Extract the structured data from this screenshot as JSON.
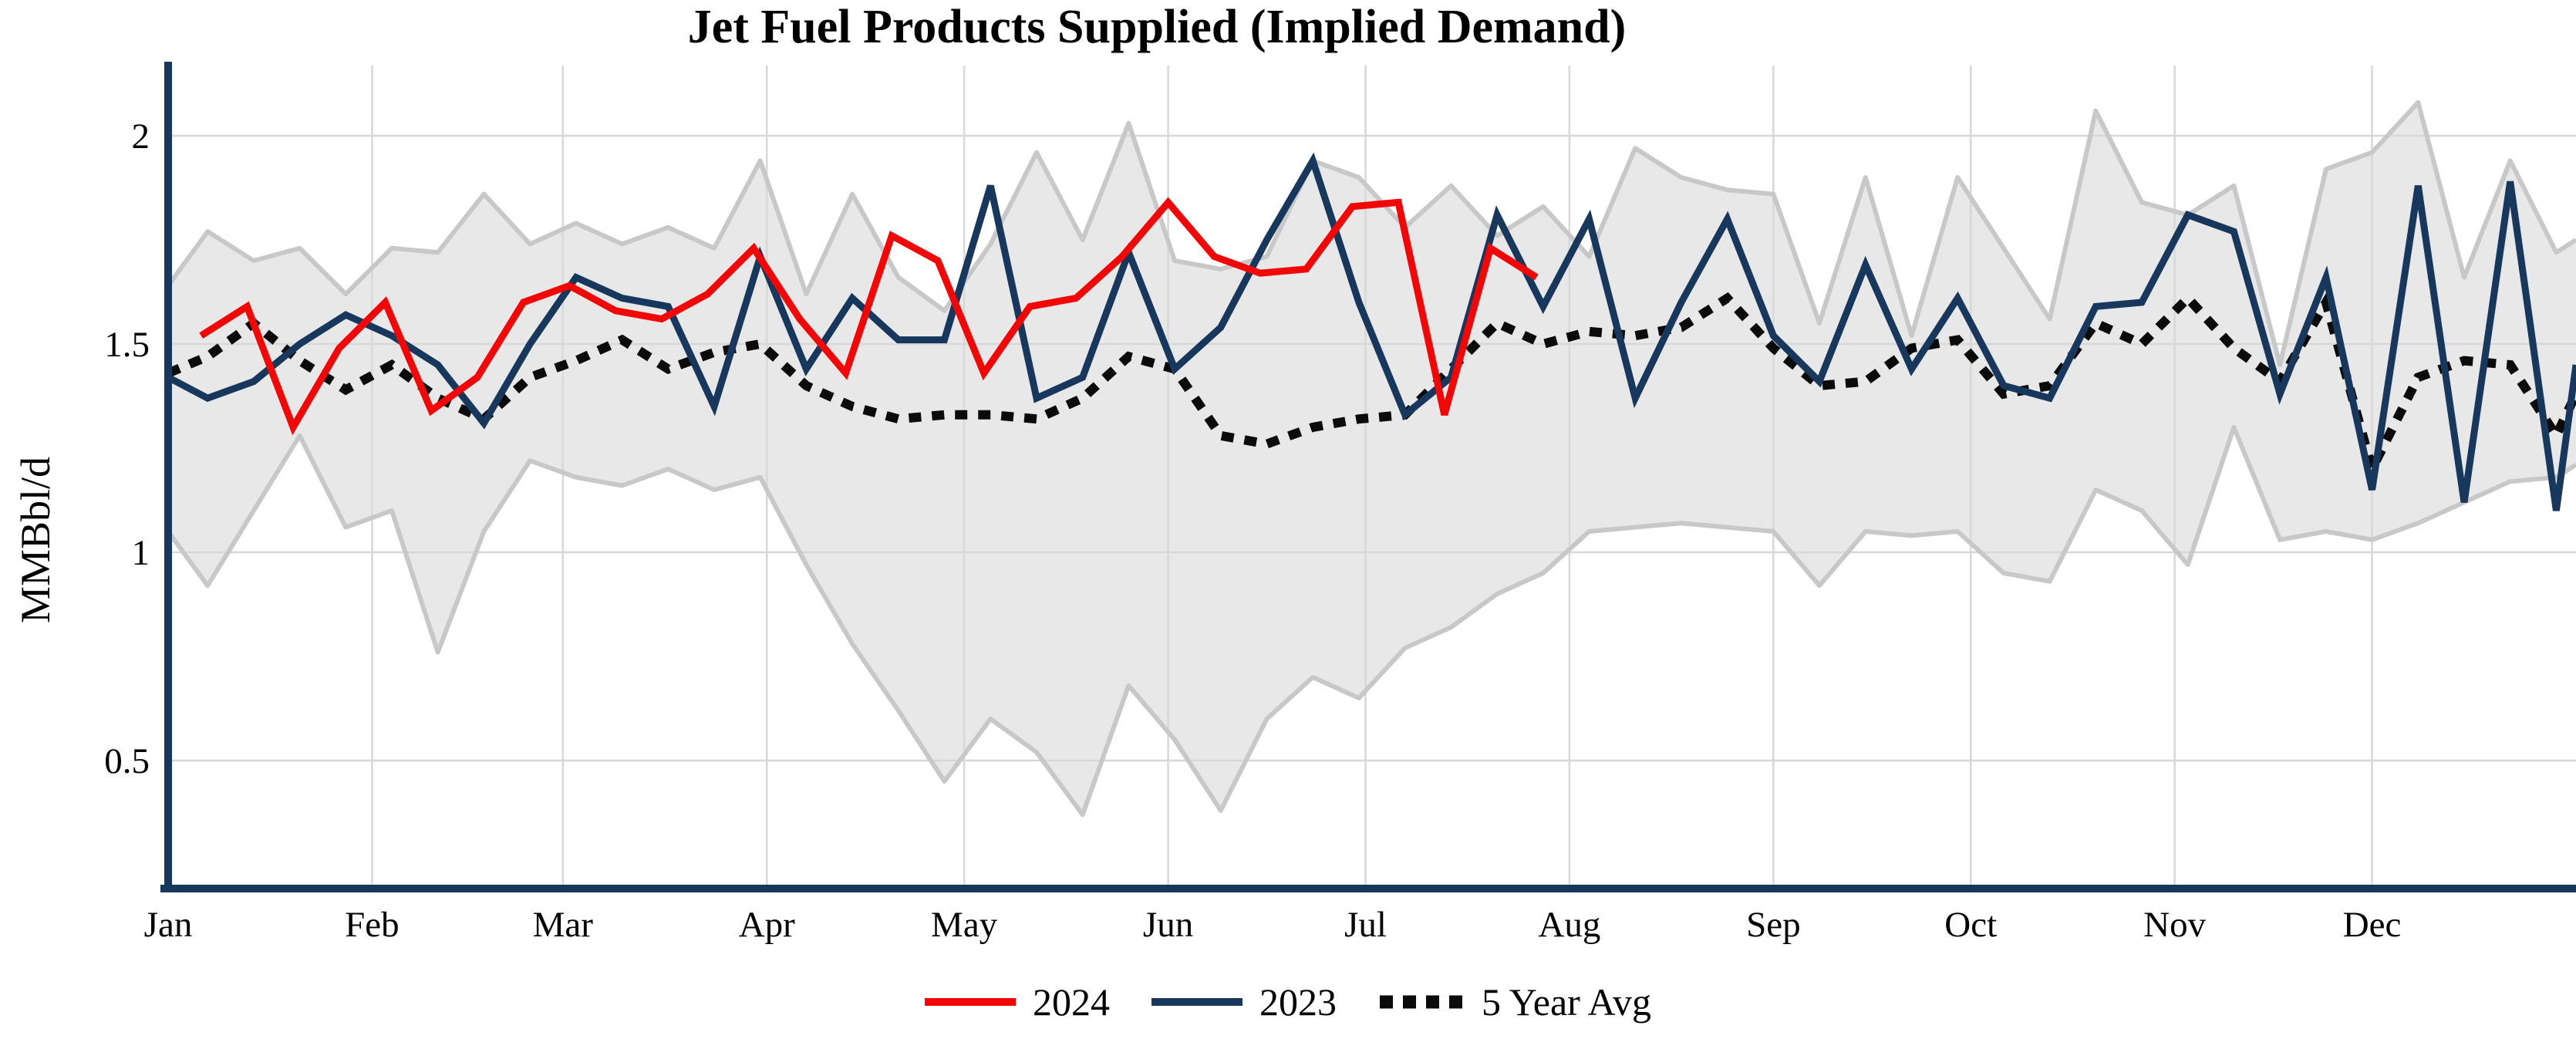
{
  "chart_data": {
    "type": "line",
    "title": "Jet Fuel Products Supplied (Implied Demand)",
    "ylabel": "MMBbl/d",
    "xlabel": "",
    "ylim": [
      0.19,
      2.17
    ],
    "yticks": [
      0.5,
      1,
      1.5,
      2
    ],
    "grid": true,
    "legend_position": "bottom",
    "x_unit": "day-of-year (weekly points)",
    "months": [
      {
        "label": "Jan",
        "day": 0
      },
      {
        "label": "Feb",
        "day": 31
      },
      {
        "label": "Mar",
        "day": 60
      },
      {
        "label": "Apr",
        "day": 91
      },
      {
        "label": "May",
        "day": 121
      },
      {
        "label": "Jun",
        "day": 152
      },
      {
        "label": "Jul",
        "day": 182
      },
      {
        "label": "Aug",
        "day": 213
      },
      {
        "label": "Sep",
        "day": 244
      },
      {
        "label": "Oct",
        "day": 274
      },
      {
        "label": "Nov",
        "day": 305
      },
      {
        "label": "Dec",
        "day": 335
      }
    ],
    "band": {
      "name": "5-year range",
      "fill": "#E8E8E8",
      "edge": "#C8C8C8",
      "points_upper": [
        [
          0,
          1.64
        ],
        [
          6,
          1.77
        ],
        [
          13,
          1.7
        ],
        [
          20,
          1.73
        ],
        [
          27,
          1.62
        ],
        [
          34,
          1.73
        ],
        [
          41,
          1.72
        ],
        [
          48,
          1.86
        ],
        [
          55,
          1.74
        ],
        [
          62,
          1.79
        ],
        [
          69,
          1.74
        ],
        [
          76,
          1.78
        ],
        [
          83,
          1.73
        ],
        [
          90,
          1.94
        ],
        [
          97,
          1.62
        ],
        [
          104,
          1.86
        ],
        [
          111,
          1.66
        ],
        [
          118,
          1.58
        ],
        [
          125,
          1.74
        ],
        [
          132,
          1.96
        ],
        [
          139,
          1.75
        ],
        [
          146,
          2.03
        ],
        [
          153,
          1.7
        ],
        [
          160,
          1.68
        ],
        [
          167,
          1.71
        ],
        [
          174,
          1.94
        ],
        [
          181,
          1.9
        ],
        [
          188,
          1.78
        ],
        [
          195,
          1.88
        ],
        [
          202,
          1.76
        ],
        [
          209,
          1.83
        ],
        [
          216,
          1.71
        ],
        [
          223,
          1.97
        ],
        [
          230,
          1.9
        ],
        [
          237,
          1.87
        ],
        [
          244,
          1.86
        ],
        [
          251,
          1.55
        ],
        [
          258,
          1.9
        ],
        [
          265,
          1.52
        ],
        [
          272,
          1.9
        ],
        [
          279,
          1.73
        ],
        [
          286,
          1.56
        ],
        [
          293,
          2.06
        ],
        [
          300,
          1.84
        ],
        [
          307,
          1.81
        ],
        [
          314,
          1.88
        ],
        [
          321,
          1.45
        ],
        [
          328,
          1.92
        ],
        [
          335,
          1.96
        ],
        [
          342,
          2.08
        ],
        [
          349,
          1.66
        ],
        [
          356,
          1.94
        ],
        [
          363,
          1.72
        ],
        [
          366,
          1.75
        ]
      ],
      "points_lower": [
        [
          0,
          1.05
        ],
        [
          6,
          0.92
        ],
        [
          13,
          1.1
        ],
        [
          20,
          1.28
        ],
        [
          27,
          1.06
        ],
        [
          34,
          1.1
        ],
        [
          41,
          0.76
        ],
        [
          48,
          1.05
        ],
        [
          55,
          1.22
        ],
        [
          62,
          1.18
        ],
        [
          69,
          1.16
        ],
        [
          76,
          1.2
        ],
        [
          83,
          1.15
        ],
        [
          90,
          1.18
        ],
        [
          97,
          0.97
        ],
        [
          104,
          0.78
        ],
        [
          111,
          0.62
        ],
        [
          118,
          0.45
        ],
        [
          125,
          0.6
        ],
        [
          132,
          0.52
        ],
        [
          139,
          0.37
        ],
        [
          146,
          0.68
        ],
        [
          153,
          0.55
        ],
        [
          160,
          0.38
        ],
        [
          167,
          0.6
        ],
        [
          174,
          0.7
        ],
        [
          181,
          0.65
        ],
        [
          188,
          0.77
        ],
        [
          195,
          0.82
        ],
        [
          202,
          0.9
        ],
        [
          209,
          0.95
        ],
        [
          216,
          1.05
        ],
        [
          223,
          1.06
        ],
        [
          230,
          1.07
        ],
        [
          237,
          1.06
        ],
        [
          244,
          1.05
        ],
        [
          251,
          0.92
        ],
        [
          258,
          1.05
        ],
        [
          265,
          1.04
        ],
        [
          272,
          1.05
        ],
        [
          279,
          0.95
        ],
        [
          286,
          0.93
        ],
        [
          293,
          1.15
        ],
        [
          300,
          1.1
        ],
        [
          307,
          0.97
        ],
        [
          314,
          1.3
        ],
        [
          321,
          1.03
        ],
        [
          328,
          1.05
        ],
        [
          335,
          1.03
        ],
        [
          342,
          1.07
        ],
        [
          349,
          1.12
        ],
        [
          356,
          1.17
        ],
        [
          363,
          1.18
        ],
        [
          366,
          1.21
        ]
      ]
    },
    "series": [
      {
        "name": "2024",
        "color": "#F20707",
        "style": "solid",
        "points": [
          [
            5,
            1.52
          ],
          [
            12,
            1.59
          ],
          [
            19,
            1.3
          ],
          [
            26,
            1.49
          ],
          [
            33,
            1.6
          ],
          [
            40,
            1.34
          ],
          [
            47,
            1.42
          ],
          [
            54,
            1.6
          ],
          [
            61,
            1.64
          ],
          [
            68,
            1.58
          ],
          [
            75,
            1.56
          ],
          [
            82,
            1.62
          ],
          [
            89,
            1.73
          ],
          [
            96,
            1.56
          ],
          [
            103,
            1.43
          ],
          [
            110,
            1.76
          ],
          [
            117,
            1.7
          ],
          [
            124,
            1.43
          ],
          [
            131,
            1.59
          ],
          [
            138,
            1.61
          ],
          [
            145,
            1.71
          ],
          [
            152,
            1.84
          ],
          [
            159,
            1.71
          ],
          [
            166,
            1.67
          ],
          [
            173,
            1.68
          ],
          [
            180,
            1.83
          ],
          [
            187,
            1.84
          ],
          [
            194,
            1.33
          ],
          [
            201,
            1.73
          ],
          [
            208,
            1.66
          ]
        ]
      },
      {
        "name": "2023",
        "color": "#17375D",
        "style": "solid",
        "points": [
          [
            0,
            1.42
          ],
          [
            6,
            1.37
          ],
          [
            13,
            1.41
          ],
          [
            20,
            1.5
          ],
          [
            27,
            1.57
          ],
          [
            34,
            1.52
          ],
          [
            41,
            1.45
          ],
          [
            48,
            1.31
          ],
          [
            55,
            1.5
          ],
          [
            62,
            1.66
          ],
          [
            69,
            1.61
          ],
          [
            76,
            1.59
          ],
          [
            83,
            1.35
          ],
          [
            90,
            1.71
          ],
          [
            97,
            1.44
          ],
          [
            104,
            1.61
          ],
          [
            111,
            1.51
          ],
          [
            118,
            1.51
          ],
          [
            125,
            1.88
          ],
          [
            132,
            1.37
          ],
          [
            139,
            1.42
          ],
          [
            146,
            1.72
          ],
          [
            153,
            1.44
          ],
          [
            160,
            1.54
          ],
          [
            167,
            1.75
          ],
          [
            174,
            1.94
          ],
          [
            181,
            1.6
          ],
          [
            188,
            1.33
          ],
          [
            195,
            1.42
          ],
          [
            202,
            1.81
          ],
          [
            209,
            1.59
          ],
          [
            216,
            1.8
          ],
          [
            223,
            1.37
          ],
          [
            230,
            1.6
          ],
          [
            237,
            1.8
          ],
          [
            244,
            1.52
          ],
          [
            251,
            1.41
          ],
          [
            258,
            1.69
          ],
          [
            265,
            1.44
          ],
          [
            272,
            1.61
          ],
          [
            279,
            1.4
          ],
          [
            286,
            1.37
          ],
          [
            293,
            1.59
          ],
          [
            300,
            1.6
          ],
          [
            307,
            1.81
          ],
          [
            314,
            1.77
          ],
          [
            321,
            1.38
          ],
          [
            328,
            1.66
          ],
          [
            335,
            1.15
          ],
          [
            342,
            1.88
          ],
          [
            349,
            1.12
          ],
          [
            356,
            1.89
          ],
          [
            363,
            1.1
          ],
          [
            366,
            1.45
          ]
        ]
      },
      {
        "name": "5 Year Avg",
        "color": "#0B0B0B",
        "style": "dotted",
        "points": [
          [
            0,
            1.43
          ],
          [
            6,
            1.47
          ],
          [
            13,
            1.55
          ],
          [
            20,
            1.46
          ],
          [
            27,
            1.39
          ],
          [
            34,
            1.45
          ],
          [
            41,
            1.37
          ],
          [
            48,
            1.32
          ],
          [
            55,
            1.42
          ],
          [
            62,
            1.46
          ],
          [
            69,
            1.51
          ],
          [
            76,
            1.44
          ],
          [
            83,
            1.48
          ],
          [
            90,
            1.5
          ],
          [
            97,
            1.4
          ],
          [
            104,
            1.35
          ],
          [
            111,
            1.32
          ],
          [
            118,
            1.33
          ],
          [
            125,
            1.33
          ],
          [
            132,
            1.32
          ],
          [
            139,
            1.37
          ],
          [
            146,
            1.47
          ],
          [
            153,
            1.44
          ],
          [
            160,
            1.28
          ],
          [
            167,
            1.26
          ],
          [
            174,
            1.3
          ],
          [
            181,
            1.32
          ],
          [
            188,
            1.33
          ],
          [
            195,
            1.44
          ],
          [
            202,
            1.55
          ],
          [
            209,
            1.5
          ],
          [
            216,
            1.53
          ],
          [
            223,
            1.52
          ],
          [
            230,
            1.54
          ],
          [
            237,
            1.61
          ],
          [
            244,
            1.49
          ],
          [
            251,
            1.4
          ],
          [
            258,
            1.41
          ],
          [
            265,
            1.49
          ],
          [
            272,
            1.51
          ],
          [
            279,
            1.38
          ],
          [
            286,
            1.4
          ],
          [
            293,
            1.55
          ],
          [
            300,
            1.5
          ],
          [
            307,
            1.61
          ],
          [
            314,
            1.49
          ],
          [
            321,
            1.41
          ],
          [
            328,
            1.6
          ],
          [
            335,
            1.2
          ],
          [
            342,
            1.42
          ],
          [
            349,
            1.46
          ],
          [
            356,
            1.45
          ],
          [
            363,
            1.28
          ],
          [
            366,
            1.38
          ]
        ]
      }
    ],
    "colors": {
      "axis": "#17375D",
      "gridline": "#D8D8D8",
      "background": "#FFFFFF"
    }
  },
  "legend": {
    "items": [
      {
        "label": "2024"
      },
      {
        "label": "2023"
      },
      {
        "label": "5 Year Avg"
      }
    ]
  }
}
